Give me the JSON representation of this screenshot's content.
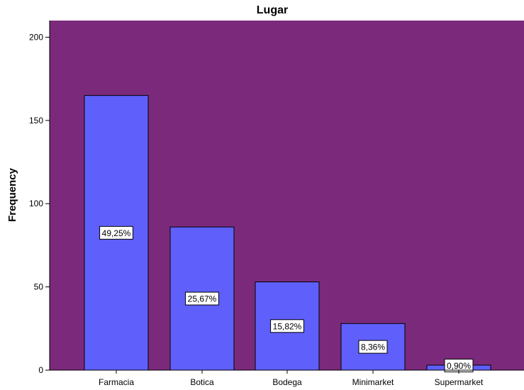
{
  "colors": {
    "plot_background": "#7b2a7b",
    "bar_fill": "#5f5ffb",
    "bar_stroke": "#000000",
    "label_box_fill": "#ffffff"
  },
  "chart_data": {
    "type": "bar",
    "title": "Lugar",
    "xlabel": "",
    "ylabel": "Frequency",
    "categories": [
      "Farmacia",
      "Botica",
      "Bodega",
      "Minimarket",
      "Supermarket"
    ],
    "values": [
      165,
      86,
      53,
      28,
      3
    ],
    "data_labels": [
      "49,25%",
      "25,67%",
      "15,82%",
      "8,36%",
      "0,90%"
    ],
    "ylim": [
      0,
      210
    ],
    "yticks": [
      0,
      50,
      100,
      150,
      200
    ],
    "ytick_labels": [
      "0",
      "50",
      "100",
      "150",
      "200"
    ],
    "grid": false,
    "legend": "none"
  }
}
